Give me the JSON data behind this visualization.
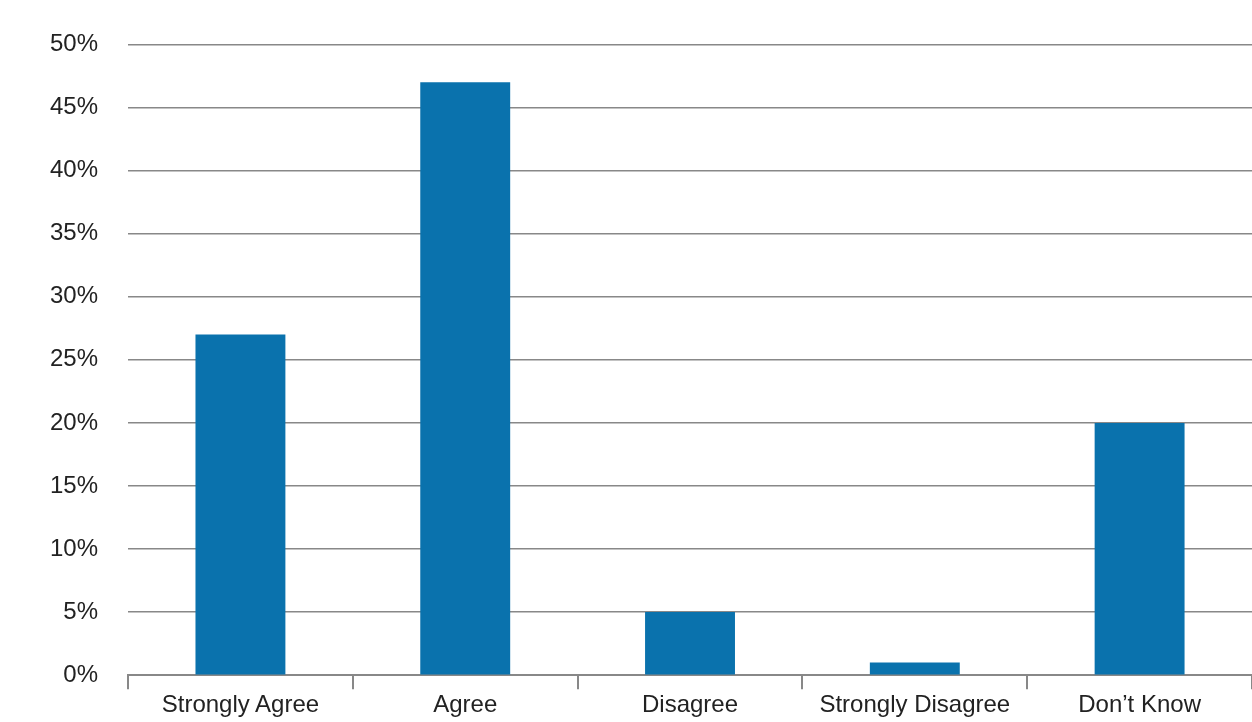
{
  "chart_data": {
    "type": "bar",
    "categories": [
      "Strongly Agree",
      "Agree",
      "Disagree",
      "Strongly Disagree",
      "Don’t Know"
    ],
    "values": [
      27,
      47,
      5,
      1,
      20
    ],
    "color": "#0a72ad",
    "ylim": [
      0,
      50
    ],
    "yticks": [
      {
        "value": 0,
        "label": "0%"
      },
      {
        "value": 5,
        "label": "5%"
      },
      {
        "value": 10,
        "label": "10%"
      },
      {
        "value": 15,
        "label": "15%"
      },
      {
        "value": 20,
        "label": "20%"
      },
      {
        "value": 25,
        "label": "25%"
      },
      {
        "value": 30,
        "label": "30%"
      },
      {
        "value": 35,
        "label": "35%"
      },
      {
        "value": 40,
        "label": "40%"
      },
      {
        "value": 45,
        "label": "45%"
      },
      {
        "value": 50,
        "label": "50%"
      }
    ],
    "grid": "y"
  }
}
